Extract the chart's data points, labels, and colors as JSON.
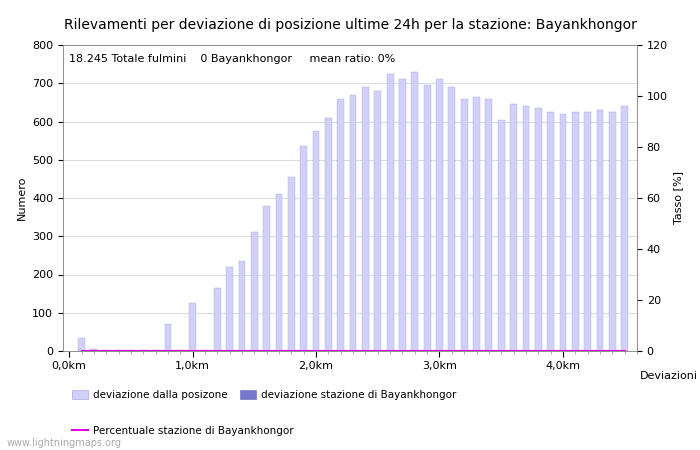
{
  "title": "Rilevamenti per deviazione di posizione ultime 24h per la stazione: Bayankhongor",
  "subtitle": "18.245 Totale fulmini    0 Bayankhongor     mean ratio: 0%",
  "xlabel": "Deviazioni",
  "ylabel_left": "Numero",
  "ylabel_right": "Tasso [%]",
  "watermark": "www.lightningmaps.org",
  "ylim_left": [
    0,
    800
  ],
  "ylim_right": [
    0,
    120
  ],
  "yticks_left": [
    0,
    100,
    200,
    300,
    400,
    500,
    600,
    700,
    800
  ],
  "yticks_right": [
    0,
    20,
    40,
    60,
    80,
    100,
    120
  ],
  "bar_width": 0.055,
  "bar_color": "#d0d0f8",
  "bar_edgecolor": "#aaaadd",
  "station_bar_color": "#7777cc",
  "line_color": "#dd00dd",
  "x_positions": [
    0.1,
    0.2,
    0.3,
    0.4,
    0.5,
    0.6,
    0.7,
    0.8,
    0.9,
    1.0,
    1.1,
    1.2,
    1.3,
    1.4,
    1.5,
    1.6,
    1.7,
    1.8,
    1.9,
    2.0,
    2.1,
    2.2,
    2.3,
    2.4,
    2.5,
    2.6,
    2.7,
    2.8,
    2.9,
    3.0,
    3.1,
    3.2,
    3.3,
    3.4,
    3.5,
    3.6,
    3.7,
    3.8,
    3.9,
    4.0,
    4.1,
    4.2,
    4.3,
    4.4,
    4.5
  ],
  "bar_heights": [
    35,
    5,
    3,
    3,
    3,
    3,
    3,
    70,
    3,
    125,
    3,
    165,
    220,
    235,
    310,
    380,
    410,
    455,
    535,
    575,
    610,
    660,
    670,
    690,
    680,
    725,
    710,
    730,
    695,
    710,
    690,
    660,
    665,
    660,
    605,
    645,
    640,
    635,
    625,
    620,
    625,
    625,
    630,
    625,
    640
  ],
  "station_bar_heights": [
    0,
    0,
    0,
    0,
    0,
    0,
    0,
    0,
    0,
    0,
    0,
    0,
    0,
    0,
    0,
    0,
    0,
    0,
    0,
    0,
    0,
    0,
    0,
    0,
    0,
    0,
    0,
    0,
    0,
    0,
    0,
    0,
    0,
    0,
    0,
    0,
    0,
    0,
    0,
    0,
    0,
    0,
    0,
    0,
    0
  ],
  "line_values": [
    0,
    0,
    0,
    0,
    0,
    0,
    0,
    0,
    0,
    0,
    0,
    0,
    0,
    0,
    0,
    0,
    0,
    0,
    0,
    0,
    0,
    0,
    0,
    0,
    0,
    0,
    0,
    0,
    0,
    0,
    0,
    0,
    0,
    0,
    0,
    0,
    0,
    0,
    0,
    0,
    0,
    0,
    0,
    0,
    0
  ],
  "xtick_major_positions": [
    0.0,
    1.0,
    2.0,
    3.0,
    4.0
  ],
  "xtick_major_labels": [
    "0,0km",
    "1,0km",
    "2,0km",
    "3,0km",
    "4,0km"
  ],
  "background_color": "#ffffff",
  "grid_color": "#cccccc",
  "legend_label_bar": "deviazione dalla posizone",
  "legend_label_station_bar": "deviazione stazione di Bayankhongor",
  "legend_label_line": "Percentuale stazione di Bayankhongor",
  "title_fontsize": 10,
  "axis_fontsize": 8,
  "tick_fontsize": 8,
  "subtitle_fontsize": 8
}
